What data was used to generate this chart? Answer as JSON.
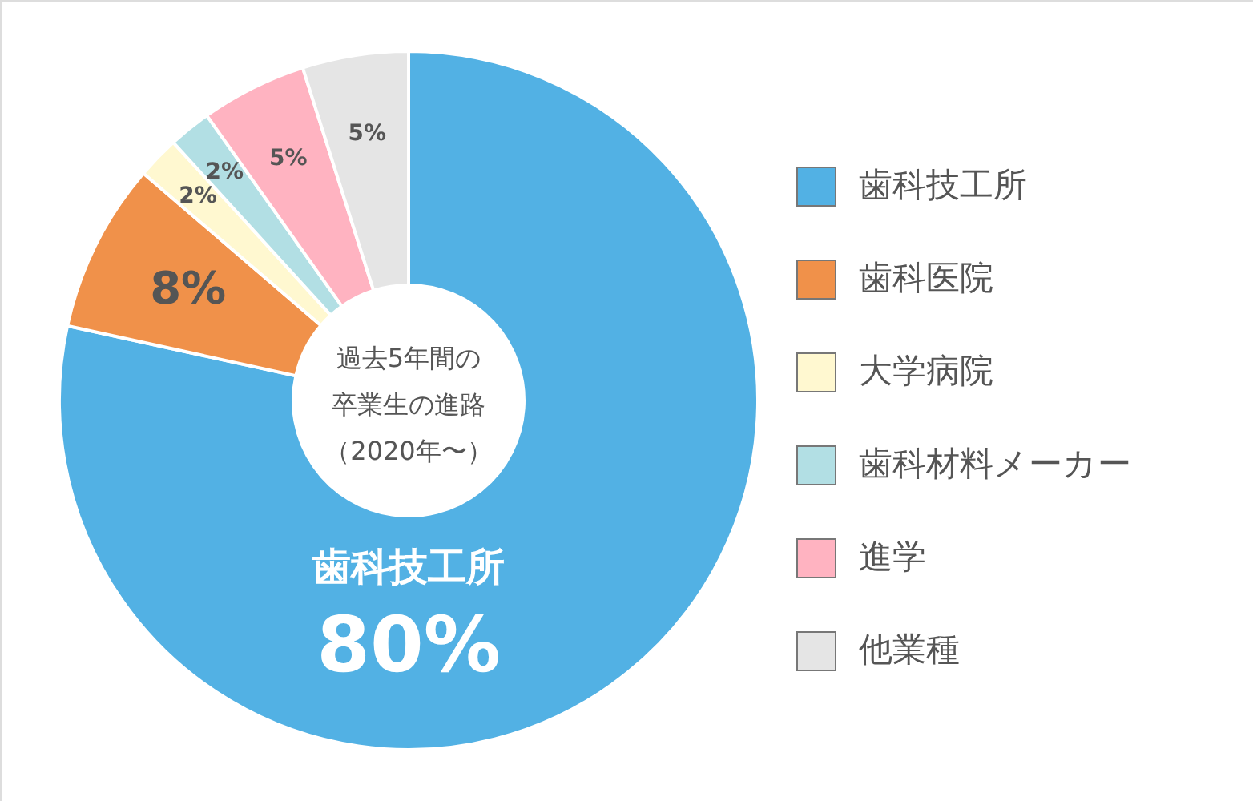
{
  "chart_data": {
    "type": "donut",
    "title": "過去5年間の卒業生の進路（2020年〜）",
    "categories": [
      "歯科技工所",
      "歯科医院",
      "大学病院",
      "歯科材料メーカー",
      "進学",
      "他業種"
    ],
    "values": [
      80,
      8,
      2,
      2,
      5,
      5
    ],
    "colors": [
      "#52b1e4",
      "#f0914a",
      "#fff8d0",
      "#b2dfe4",
      "#ffb3c1",
      "#e5e5e5"
    ],
    "value_labels": [
      "歯科技工所\n80%",
      "8%",
      "2%",
      "2%",
      "5%",
      "5%"
    ],
    "legend": "right"
  }
}
